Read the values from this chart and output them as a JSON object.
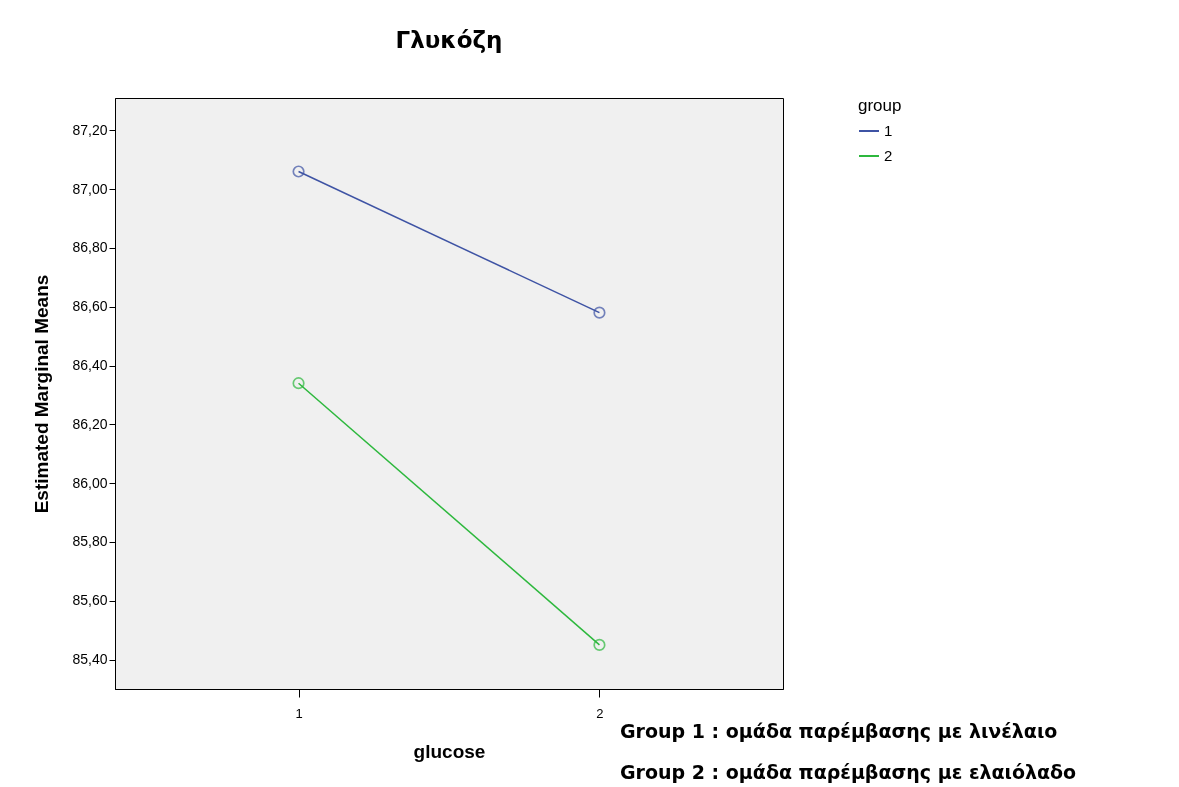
{
  "chart_data": {
    "type": "line",
    "title": "Γλυκόζη",
    "xlabel": "glucose",
    "ylabel": "Estimated Marginal Means",
    "legend_title": "group",
    "legend": "right",
    "marker": "circle",
    "grid": false,
    "categories": [
      "1",
      "2"
    ],
    "series": [
      {
        "name": "1",
        "color": "#3e53a4",
        "values": [
          87.06,
          86.58
        ]
      },
      {
        "name": "2",
        "color": "#2db83d",
        "values": [
          86.34,
          85.45
        ]
      }
    ],
    "ylim": [
      85.3,
      87.31
    ],
    "yticks": [
      {
        "value": 85.4,
        "label": "85,40"
      },
      {
        "value": 85.6,
        "label": "85,60"
      },
      {
        "value": 85.8,
        "label": "85,80"
      },
      {
        "value": 86.0,
        "label": "86,00"
      },
      {
        "value": 86.2,
        "label": "86,20"
      },
      {
        "value": 86.4,
        "label": "86,40"
      },
      {
        "value": 86.6,
        "label": "86,60"
      },
      {
        "value": 86.8,
        "label": "86,80"
      },
      {
        "value": 87.0,
        "label": "87,00"
      },
      {
        "value": 87.2,
        "label": "87,20"
      }
    ],
    "annotations": [
      "Group 1 :  ομάδα παρέμβασης με λινέλαιο",
      "Group 2 : ομάδα παρέμβασης με ελαιόλαδο"
    ]
  }
}
